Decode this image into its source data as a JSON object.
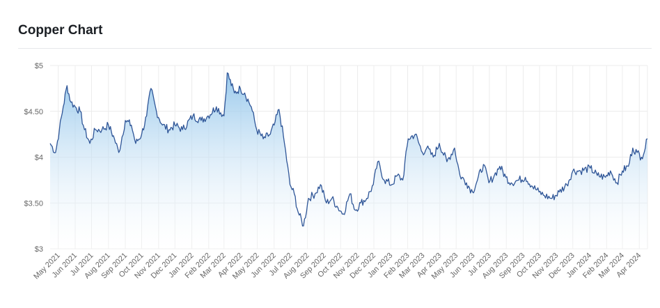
{
  "header": {
    "title": "Copper Chart"
  },
  "colors": {
    "line": "#2e5597",
    "fill_top": "#8ec3ea",
    "fill_bottom": "#ffffff",
    "grid": "#ececec"
  },
  "chart_data": {
    "type": "area",
    "title": "Copper Chart",
    "ylim": [
      3,
      5
    ],
    "yticks": [
      3,
      3.5,
      4,
      4.5,
      5
    ],
    "ytick_labels": [
      "$3",
      "$3.50",
      "$4",
      "$4.50",
      "$5"
    ],
    "xlim": [
      "2021-04-16",
      "2024-04-16"
    ],
    "grid": true,
    "xtick_labels": [
      "May 2021",
      "Jun 2021",
      "Jul 2021",
      "Aug 2021",
      "Sep 2021",
      "Oct 2021",
      "Nov 2021",
      "Dec 2021",
      "Jan 2022",
      "Feb 2022",
      "Mar 2022",
      "Apr 2022",
      "May 2022",
      "Jun 2022",
      "Jul 2022",
      "Aug 2022",
      "Sep 2022",
      "Oct 2022",
      "Nov 2022",
      "Dec 2022",
      "Jan 2023",
      "Feb 2023",
      "Mar 2023",
      "Apr 2023",
      "May 2023",
      "Jun 2023",
      "Jul 2023",
      "Aug 2023",
      "Sep 2023",
      "Oct 2023",
      "Nov 2023",
      "Dec 2023",
      "Jan 2024",
      "Feb 2024",
      "Mar 2024",
      "Apr 2024"
    ],
    "series": [
      {
        "x": [
          "2021-04-16",
          "2021-04-26",
          "2021-05-03",
          "2021-05-10",
          "2021-05-17",
          "2021-05-24",
          "2021-06-01",
          "2021-06-10",
          "2021-06-18",
          "2021-06-28",
          "2021-07-08",
          "2021-07-20",
          "2021-08-01",
          "2021-08-12",
          "2021-08-20",
          "2021-09-01",
          "2021-09-12",
          "2021-09-20",
          "2021-10-01",
          "2021-10-10",
          "2021-10-18",
          "2021-10-28",
          "2021-11-08",
          "2021-11-20",
          "2021-12-01",
          "2021-12-15",
          "2022-01-03",
          "2022-01-18",
          "2022-01-31",
          "2022-02-15",
          "2022-03-01",
          "2022-03-07",
          "2022-03-20",
          "2022-03-31",
          "2022-04-08",
          "2022-04-20",
          "2022-04-30",
          "2022-05-12",
          "2022-05-25",
          "2022-06-01",
          "2022-06-10",
          "2022-06-20",
          "2022-06-30",
          "2022-07-08",
          "2022-07-15",
          "2022-07-25",
          "2022-08-03",
          "2022-08-15",
          "2022-08-25",
          "2022-09-05",
          "2022-09-15",
          "2022-09-26",
          "2022-10-06",
          "2022-10-18",
          "2022-10-28",
          "2022-11-07",
          "2022-11-18",
          "2022-11-30",
          "2022-12-08",
          "2022-12-20",
          "2023-01-03",
          "2023-01-13",
          "2023-01-23",
          "2023-02-02",
          "2023-02-15",
          "2023-02-28",
          "2023-03-08",
          "2023-03-20",
          "2023-03-31",
          "2023-04-14",
          "2023-04-28",
          "2023-05-08",
          "2023-05-20",
          "2023-05-31",
          "2023-06-09",
          "2023-06-20",
          "2023-06-30",
          "2023-07-10",
          "2023-07-20",
          "2023-07-31",
          "2023-08-10",
          "2023-08-24",
          "2023-09-05",
          "2023-09-18",
          "2023-09-30",
          "2023-10-10",
          "2023-10-24",
          "2023-11-06",
          "2023-11-20",
          "2023-12-01",
          "2023-12-15",
          "2024-01-02",
          "2024-01-15",
          "2024-01-30",
          "2024-02-08",
          "2024-02-20",
          "2024-03-01",
          "2024-03-12",
          "2024-03-20",
          "2024-03-28",
          "2024-04-05",
          "2024-04-12",
          "2024-04-16"
        ],
        "values": [
          4.15,
          4.05,
          4.3,
          4.55,
          4.78,
          4.6,
          4.55,
          4.5,
          4.3,
          4.15,
          4.3,
          4.3,
          4.35,
          4.2,
          4.05,
          4.4,
          4.35,
          4.15,
          4.25,
          4.45,
          4.75,
          4.5,
          4.35,
          4.3,
          4.35,
          4.3,
          4.45,
          4.4,
          4.45,
          4.55,
          4.45,
          4.92,
          4.7,
          4.75,
          4.7,
          4.55,
          4.3,
          4.2,
          4.25,
          4.35,
          4.52,
          4.15,
          3.7,
          3.6,
          3.4,
          3.25,
          3.55,
          3.6,
          3.7,
          3.5,
          3.55,
          3.45,
          3.38,
          3.6,
          3.42,
          3.5,
          3.55,
          3.7,
          3.95,
          3.75,
          3.7,
          3.8,
          3.75,
          4.2,
          4.25,
          4.05,
          4.1,
          4.0,
          4.15,
          3.95,
          4.1,
          3.8,
          3.72,
          3.62,
          3.75,
          3.92,
          3.72,
          3.8,
          3.9,
          3.78,
          3.72,
          3.75,
          3.78,
          3.68,
          3.62,
          3.58,
          3.55,
          3.62,
          3.7,
          3.85,
          3.85,
          3.88,
          3.8,
          3.78,
          3.85,
          3.72,
          3.85,
          3.9,
          4.1,
          4.05,
          4.0,
          4.1,
          4.2
        ]
      }
    ]
  }
}
